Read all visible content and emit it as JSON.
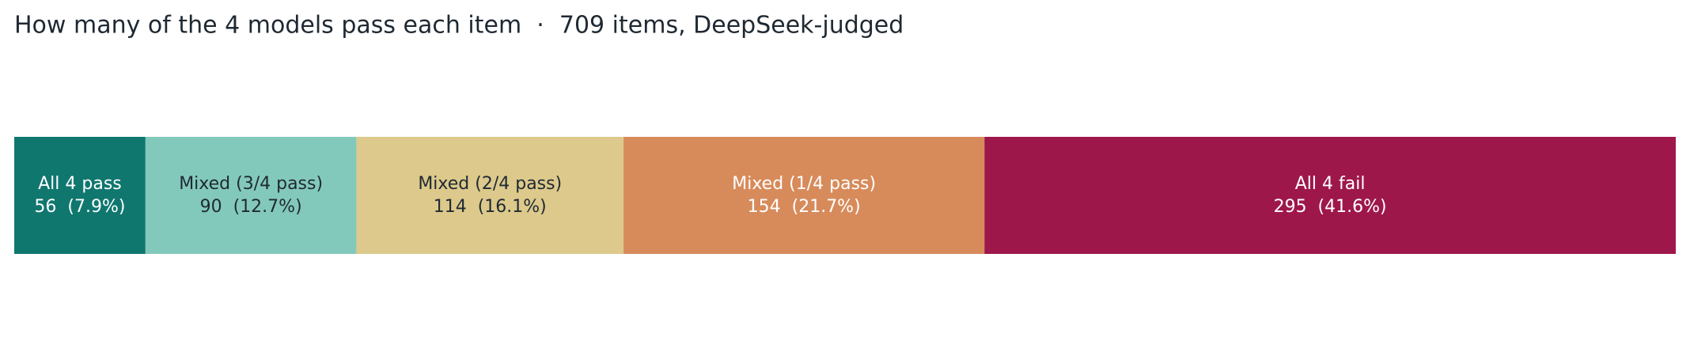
{
  "chart_data": {
    "type": "stacked_bar",
    "title": "How many of the 4 models pass each item  ·  709 items, DeepSeek-judged",
    "series": [
      {
        "name": "All 4 pass",
        "color": "#10776f",
        "label_color": "#ffffff",
        "values": [
          56
        ],
        "value_labels": [
          "56  (7.9%)"
        ]
      },
      {
        "name": "Mixed (3/4 pass)",
        "color": "#83c9bb",
        "label_color": "#1f2933",
        "values": [
          90
        ],
        "value_labels": [
          "90  (12.7%)"
        ]
      },
      {
        "name": "Mixed (2/4 pass)",
        "color": "#dcc98b",
        "label_color": "#1f2933",
        "values": [
          114
        ],
        "value_labels": [
          "114  (16.1%)"
        ]
      },
      {
        "name": "Mixed (1/4 pass)",
        "color": "#d78b5b",
        "label_color": "#ffffff",
        "values": [
          154
        ],
        "value_labels": [
          "154  (21.7%)"
        ]
      },
      {
        "name": "All 4 fail",
        "color": "#9e174b",
        "label_color": "#ffffff",
        "values": [
          295
        ],
        "value_labels": [
          "295  (41.6%)"
        ]
      }
    ]
  }
}
